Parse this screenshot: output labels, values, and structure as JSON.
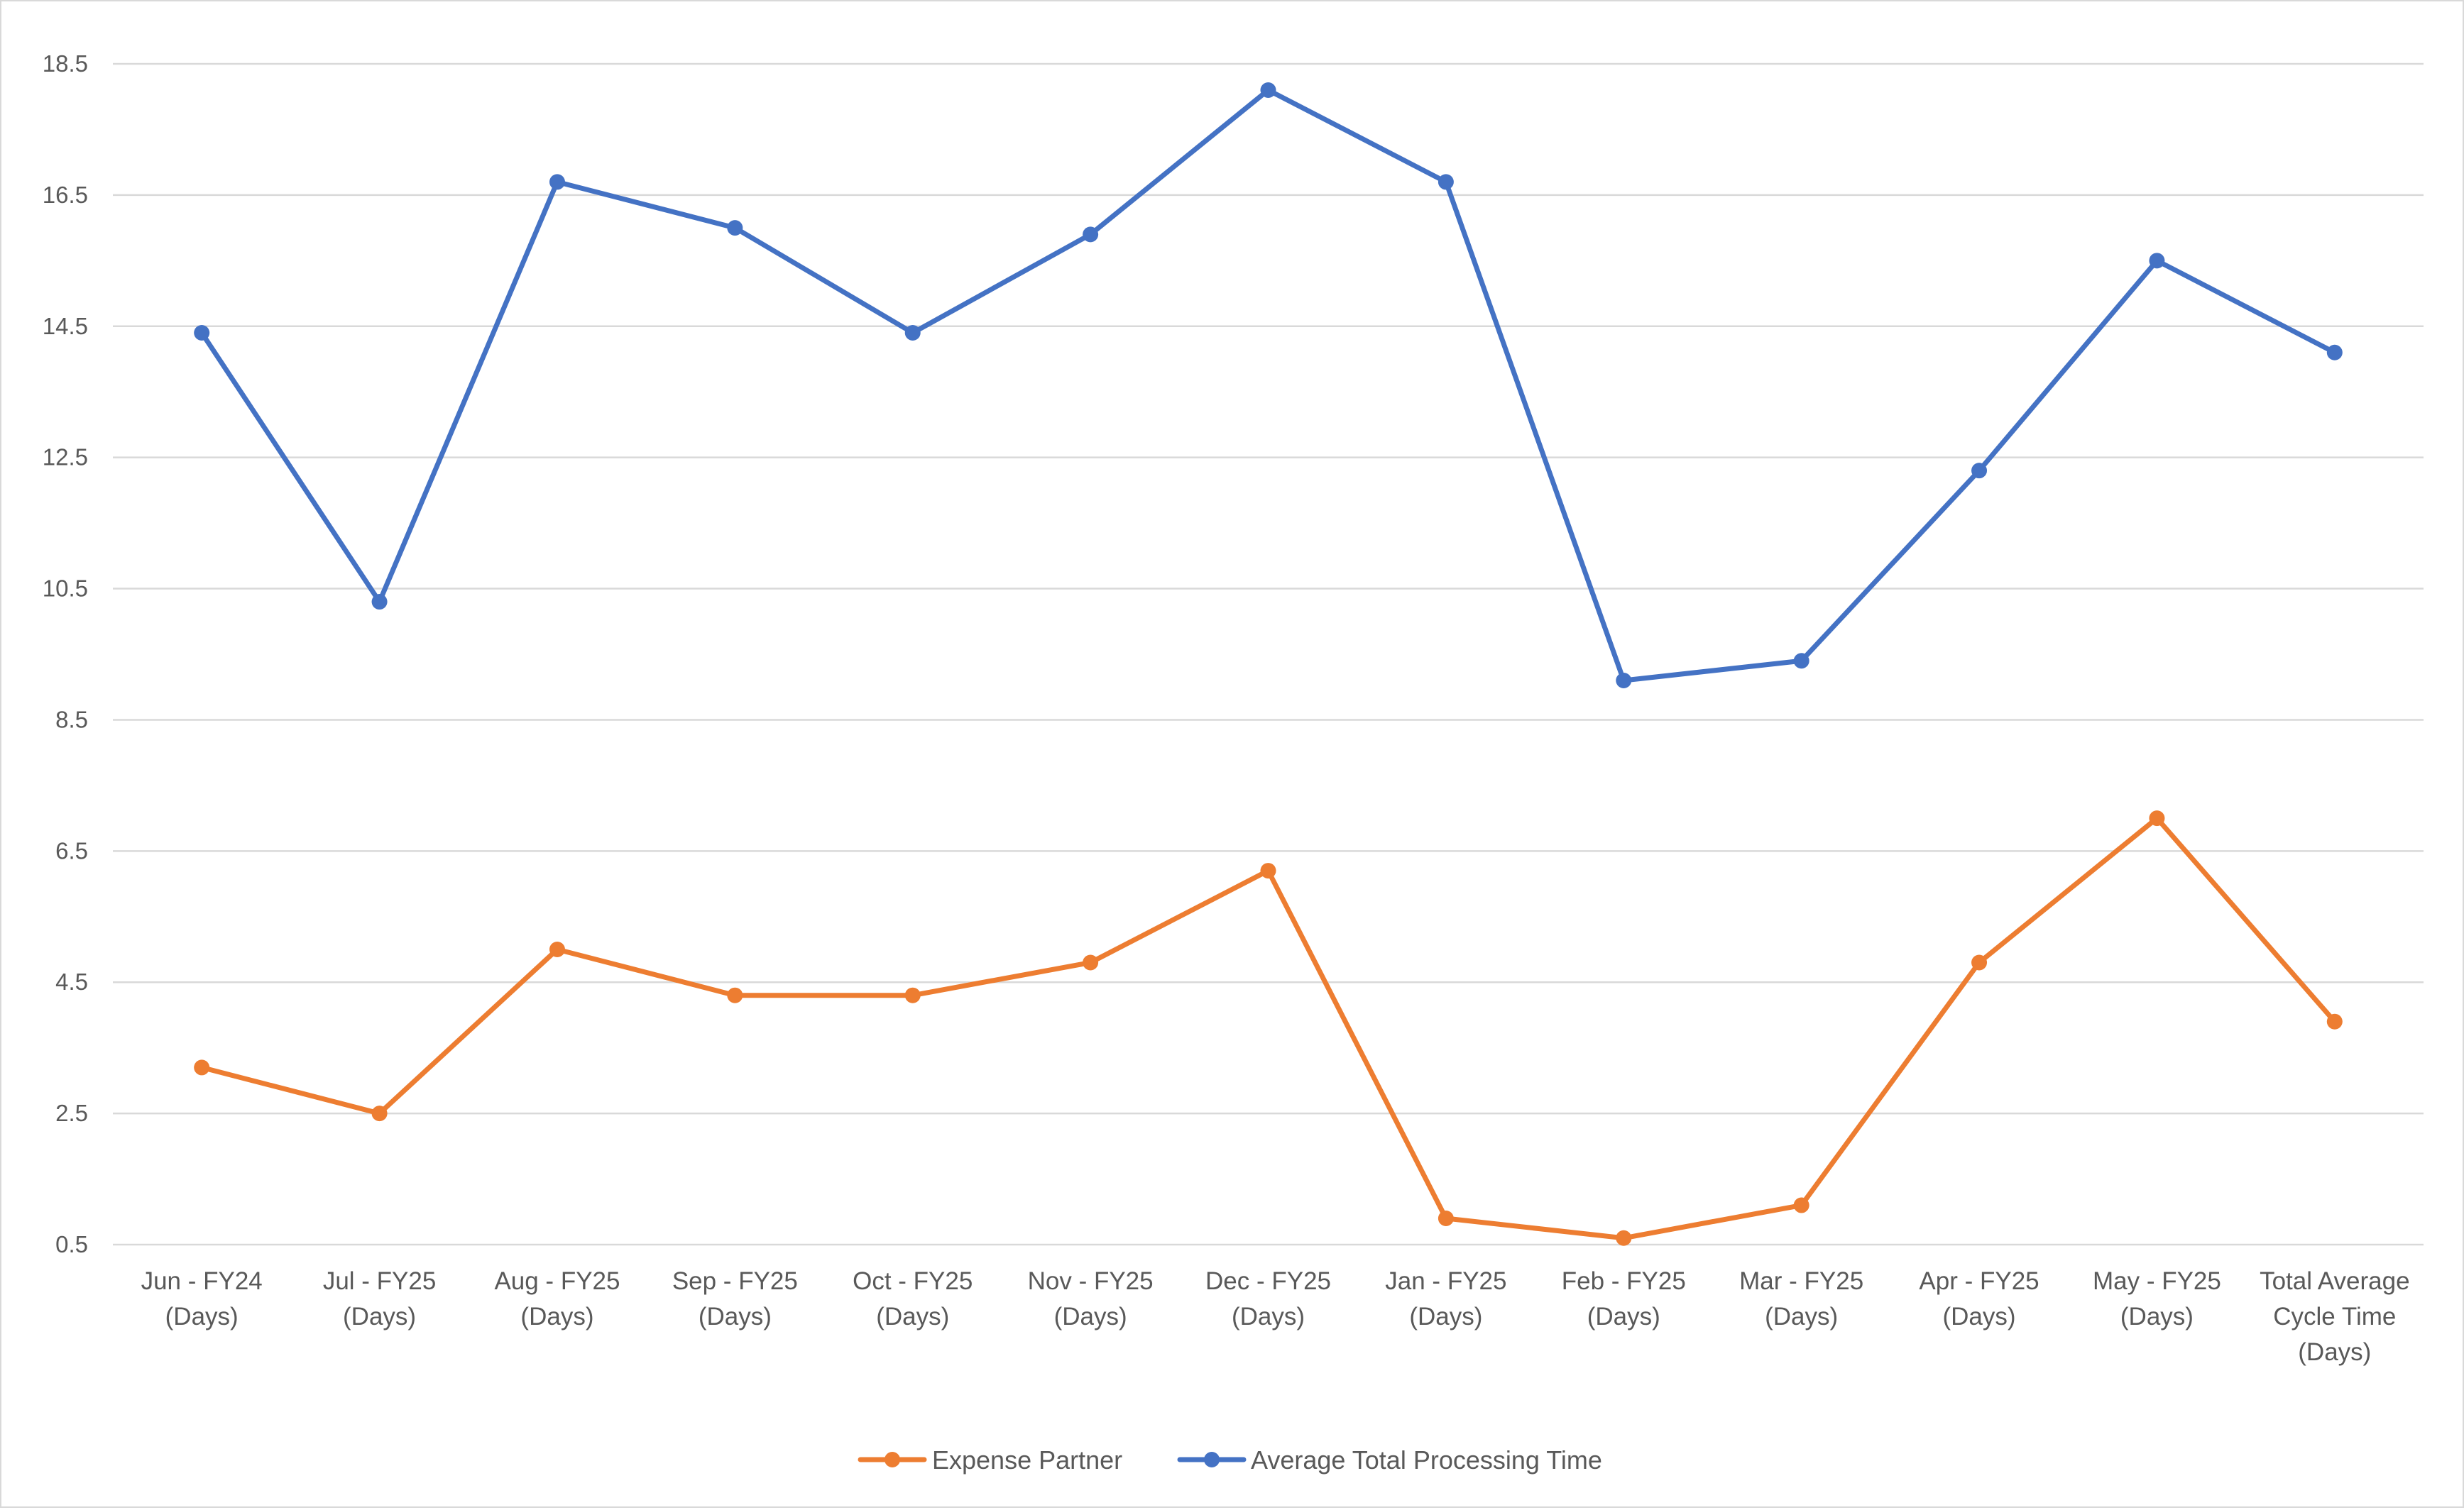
{
  "chart_data": {
    "type": "line",
    "title": "",
    "xlabel": "",
    "ylabel": "",
    "categories": [
      [
        "Jun - FY24",
        "(Days)"
      ],
      [
        "Jul - FY25",
        "(Days)"
      ],
      [
        "Aug - FY25",
        "(Days)"
      ],
      [
        "Sep - FY25",
        "(Days)"
      ],
      [
        "Oct - FY25",
        "(Days)"
      ],
      [
        "Nov - FY25",
        "(Days)"
      ],
      [
        "Dec - FY25",
        "(Days)"
      ],
      [
        "Jan - FY25",
        "(Days)"
      ],
      [
        "Feb - FY25",
        "(Days)"
      ],
      [
        "Mar - FY25",
        "(Days)"
      ],
      [
        "Apr - FY25",
        "(Days)"
      ],
      [
        "May - FY25",
        "(Days)"
      ],
      [
        "Total Average",
        "Cycle Time",
        "(Days)"
      ]
    ],
    "y_ticks": [
      "0.5",
      "2.5",
      "4.5",
      "6.5",
      "8.5",
      "10.5",
      "12.5",
      "14.5",
      "16.5",
      "18.5"
    ],
    "ylim": [
      0.5,
      18.5
    ],
    "grid": true,
    "legend_position": "bottom",
    "series": [
      {
        "name": "Expense Partner",
        "color": "#ED7D31",
        "values": [
          3.2,
          2.5,
          5.0,
          4.3,
          4.3,
          4.8,
          6.2,
          0.9,
          0.6,
          1.1,
          4.8,
          7.0,
          3.9
        ]
      },
      {
        "name": "Average Total Processing Time",
        "color": "#4472C4",
        "values": [
          14.4,
          10.3,
          16.7,
          16.0,
          14.4,
          15.9,
          18.1,
          16.7,
          9.1,
          9.4,
          12.3,
          15.5,
          14.1
        ]
      }
    ]
  }
}
